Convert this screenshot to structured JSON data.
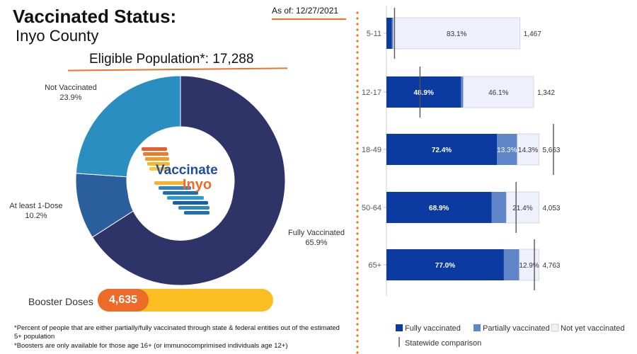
{
  "header": {
    "title": "Vaccinated Status:",
    "subtitle": "Inyo County",
    "as_of": "As of: 12/27/2021",
    "eligible": "Eligible Population*: 17,288"
  },
  "logo": {
    "line1": "Vaccinate",
    "line2": "Inyo"
  },
  "donut": {
    "slices": [
      {
        "name": "Fully Vaccinated",
        "value": 65.9,
        "pct": "65.9%",
        "color": "#2e3368"
      },
      {
        "name": "At least 1-Dose",
        "value": 10.2,
        "pct": "10.2%",
        "color": "#2b5e9c"
      },
      {
        "name": "Not Vaccinated",
        "value": 23.9,
        "pct": "23.9%",
        "color": "#2b8ec0"
      }
    ]
  },
  "booster": {
    "label": "Booster Doses",
    "value": "4,635"
  },
  "footnotes": [
    "*Percent of people that are either partially/fully vaccinated through state & federal entities out of the estimated 5+ population",
    "*Boosters are only available for those age 16+ (or immunocomprimised individuals age 12+)"
  ],
  "chart_data": {
    "type": "bar",
    "orientation": "horizontal",
    "stacked": true,
    "categories": [
      "5-11",
      "12-17",
      "18-49",
      "50-64",
      "65+"
    ],
    "series": [
      {
        "name": "Fully vaccinated",
        "color": "#0b3aa0",
        "values": [
          {
            "v": 3.5,
            "label": ""
          },
          {
            "v": 48.9,
            "label": "48.9%"
          },
          {
            "v": 72.4,
            "label": "72.4%"
          },
          {
            "v": 68.9,
            "label": "68.9%"
          },
          {
            "v": 77.0,
            "label": "77.0%"
          }
        ]
      },
      {
        "name": "Partially vaccinated",
        "color": "#5f86c8",
        "values": [
          {
            "v": 1.0,
            "label": ""
          },
          {
            "v": 1.5,
            "label": ""
          },
          {
            "v": 13.3,
            "label": "13.3%"
          },
          {
            "v": 9.7,
            "label": ""
          },
          {
            "v": 10.1,
            "label": ""
          }
        ]
      },
      {
        "name": "Not yet vaccinated",
        "color": "#eef1fb",
        "values": [
          {
            "v": 83.1,
            "label": "83.1%"
          },
          {
            "v": 46.1,
            "label": "46.1%"
          },
          {
            "v": 14.3,
            "label": "14.3%"
          },
          {
            "v": 21.4,
            "label": "21.4%"
          },
          {
            "v": 12.9,
            "label": "12.9%"
          }
        ]
      }
    ],
    "totals": [
      "1,467",
      "1,342",
      "5,663",
      "4,053",
      "4,763"
    ],
    "statewide": [
      5.3,
      22.0,
      109.5,
      85.0,
      97.0
    ],
    "statewide_label": "Statewide comparison",
    "xlim": [
      0,
      155
    ]
  }
}
